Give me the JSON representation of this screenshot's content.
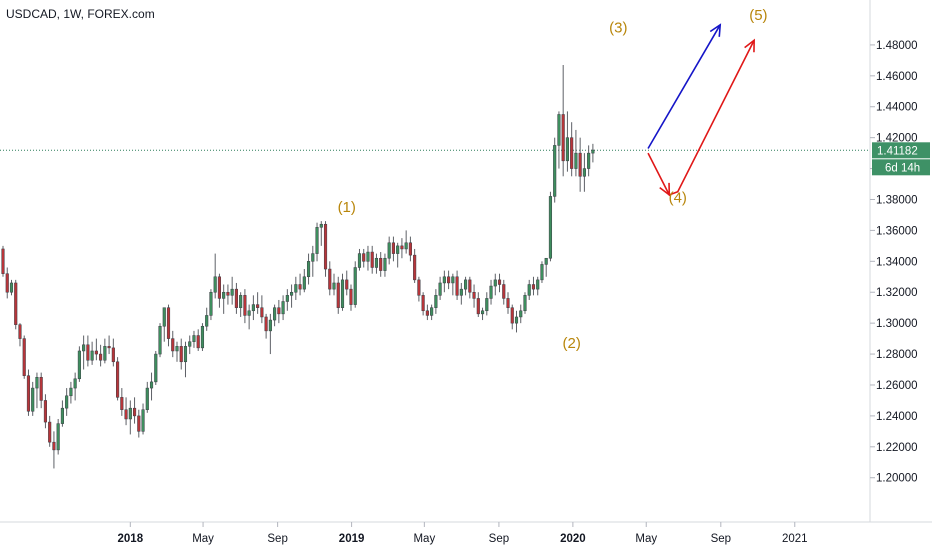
{
  "header": {
    "title": "USDCAD, 1W, FOREX.com"
  },
  "colors": {
    "up": "#3e8e5e",
    "down": "#b8353a",
    "wave_label": "#b8860b",
    "blue_arrow": "#1515c8",
    "red_arrow": "#e01818",
    "price_line": "#2e7d5b",
    "axis_text": "#131722",
    "price_tag_bg": "#3e9166"
  },
  "price_tag": {
    "price": "1.41182",
    "countdown": "6d 14h"
  },
  "wave_labels": [
    {
      "text": "(1)",
      "date": "2018-12-24",
      "price": 1.372
    },
    {
      "text": "(2)",
      "date": "2019-12-30",
      "price": 1.284
    },
    {
      "text": "(3)",
      "date": "2020-03-16",
      "price": 1.488
    },
    {
      "text": "(4)",
      "date": "2020-06-22",
      "price": 1.378
    },
    {
      "text": "(5)",
      "date": "2020-11-02",
      "price": 1.496
    }
  ],
  "arrows": [
    {
      "name": "blue-projection-arrow",
      "color_key": "blue_arrow",
      "points": [
        [
          "2020-05-04",
          1.413
        ],
        [
          "2020-08-31",
          1.493
        ]
      ]
    },
    {
      "name": "red-projection-arrow",
      "color_key": "red_arrow",
      "points": [
        [
          "2020-05-04",
          1.41
        ],
        [
          "2020-06-08",
          1.383
        ],
        [
          "2020-06-22",
          1.385
        ],
        [
          "2020-10-26",
          1.483
        ]
      ]
    }
  ],
  "chart_data": {
    "type": "candlestick",
    "title": "USDCAD, 1W, FOREX.com",
    "x_axis": {
      "ticks": [
        {
          "label": "2018",
          "date": "2018-01-01",
          "bold": true
        },
        {
          "label": "May",
          "date": "2018-05-01",
          "bold": false
        },
        {
          "label": "Sep",
          "date": "2018-09-01",
          "bold": false
        },
        {
          "label": "2019",
          "date": "2019-01-01",
          "bold": true
        },
        {
          "label": "May",
          "date": "2019-05-01",
          "bold": false
        },
        {
          "label": "Sep",
          "date": "2019-09-01",
          "bold": false
        },
        {
          "label": "2020",
          "date": "2020-01-01",
          "bold": true
        },
        {
          "label": "May",
          "date": "2020-05-01",
          "bold": false
        },
        {
          "label": "Sep",
          "date": "2020-09-01",
          "bold": false
        },
        {
          "label": "2021",
          "date": "2021-01-01",
          "bold": false
        }
      ]
    },
    "y_axis": {
      "side": "right",
      "range": [
        1.183,
        1.5
      ],
      "ticks": [
        "1.20000",
        "1.22000",
        "1.24000",
        "1.26000",
        "1.28000",
        "1.30000",
        "1.32000",
        "1.34000",
        "1.36000",
        "1.38000",
        "1.40000",
        "1.42000",
        "1.44000",
        "1.46000",
        "1.48000"
      ]
    },
    "current_price": 1.41182,
    "start_date": "2017-06-05",
    "candles": [
      [
        1.348,
        1.35,
        1.33,
        1.332
      ],
      [
        1.332,
        1.336,
        1.316,
        1.32
      ],
      [
        1.32,
        1.328,
        1.318,
        1.326
      ],
      [
        1.326,
        1.328,
        1.296,
        1.299
      ],
      [
        1.299,
        1.3,
        1.285,
        1.29
      ],
      [
        1.29,
        1.292,
        1.264,
        1.266
      ],
      [
        1.266,
        1.27,
        1.24,
        1.243
      ],
      [
        1.243,
        1.262,
        1.24,
        1.258
      ],
      [
        1.258,
        1.268,
        1.245,
        1.265
      ],
      [
        1.265,
        1.268,
        1.245,
        1.25
      ],
      [
        1.25,
        1.254,
        1.232,
        1.236
      ],
      [
        1.236,
        1.24,
        1.22,
        1.223
      ],
      [
        1.223,
        1.23,
        1.206,
        1.218
      ],
      [
        1.218,
        1.238,
        1.215,
        1.235
      ],
      [
        1.235,
        1.25,
        1.233,
        1.245
      ],
      [
        1.245,
        1.258,
        1.24,
        1.253
      ],
      [
        1.253,
        1.262,
        1.248,
        1.258
      ],
      [
        1.258,
        1.268,
        1.25,
        1.264
      ],
      [
        1.264,
        1.285,
        1.262,
        1.282
      ],
      [
        1.282,
        1.292,
        1.27,
        1.286
      ],
      [
        1.286,
        1.292,
        1.272,
        1.276
      ],
      [
        1.276,
        1.288,
        1.273,
        1.282
      ],
      [
        1.282,
        1.29,
        1.276,
        1.28
      ],
      [
        1.28,
        1.286,
        1.272,
        1.276
      ],
      [
        1.276,
        1.29,
        1.274,
        1.285
      ],
      [
        1.285,
        1.292,
        1.28,
        1.284
      ],
      [
        1.284,
        1.29,
        1.272,
        1.275
      ],
      [
        1.275,
        1.278,
        1.25,
        1.252
      ],
      [
        1.252,
        1.258,
        1.24,
        1.244
      ],
      [
        1.244,
        1.252,
        1.234,
        1.238
      ],
      [
        1.238,
        1.25,
        1.228,
        1.245
      ],
      [
        1.245,
        1.252,
        1.235,
        1.24
      ],
      [
        1.24,
        1.244,
        1.226,
        1.23
      ],
      [
        1.23,
        1.248,
        1.228,
        1.244
      ],
      [
        1.244,
        1.262,
        1.242,
        1.258
      ],
      [
        1.258,
        1.268,
        1.25,
        1.262
      ],
      [
        1.262,
        1.282,
        1.26,
        1.28
      ],
      [
        1.28,
        1.3,
        1.278,
        1.298
      ],
      [
        1.298,
        1.31,
        1.288,
        1.31
      ],
      [
        1.31,
        1.312,
        1.285,
        1.29
      ],
      [
        1.29,
        1.295,
        1.278,
        1.282
      ],
      [
        1.282,
        1.288,
        1.275,
        1.285
      ],
      [
        1.285,
        1.29,
        1.27,
        1.275
      ],
      [
        1.275,
        1.288,
        1.265,
        1.285
      ],
      [
        1.285,
        1.292,
        1.28,
        1.288
      ],
      [
        1.288,
        1.295,
        1.284,
        1.292
      ],
      [
        1.292,
        1.296,
        1.282,
        1.284
      ],
      [
        1.284,
        1.3,
        1.282,
        1.298
      ],
      [
        1.298,
        1.31,
        1.295,
        1.305
      ],
      [
        1.305,
        1.322,
        1.302,
        1.32
      ],
      [
        1.32,
        1.345,
        1.316,
        1.33
      ],
      [
        1.33,
        1.332,
        1.31,
        1.316
      ],
      [
        1.316,
        1.325,
        1.306,
        1.32
      ],
      [
        1.32,
        1.325,
        1.312,
        1.318
      ],
      [
        1.318,
        1.33,
        1.312,
        1.322
      ],
      [
        1.322,
        1.326,
        1.306,
        1.31
      ],
      [
        1.31,
        1.32,
        1.304,
        1.318
      ],
      [
        1.318,
        1.322,
        1.3,
        1.305
      ],
      [
        1.305,
        1.312,
        1.296,
        1.308
      ],
      [
        1.308,
        1.318,
        1.302,
        1.312
      ],
      [
        1.312,
        1.32,
        1.306,
        1.31
      ],
      [
        1.31,
        1.318,
        1.3,
        1.304
      ],
      [
        1.304,
        1.306,
        1.29,
        1.295
      ],
      [
        1.295,
        1.306,
        1.28,
        1.302
      ],
      [
        1.302,
        1.312,
        1.298,
        1.31
      ],
      [
        1.31,
        1.315,
        1.3,
        1.306
      ],
      [
        1.306,
        1.318,
        1.302,
        1.314
      ],
      [
        1.314,
        1.322,
        1.308,
        1.318
      ],
      [
        1.318,
        1.325,
        1.31,
        1.32
      ],
      [
        1.32,
        1.33,
        1.315,
        1.325
      ],
      [
        1.325,
        1.332,
        1.318,
        1.322
      ],
      [
        1.322,
        1.335,
        1.32,
        1.33
      ],
      [
        1.33,
        1.345,
        1.325,
        1.34
      ],
      [
        1.34,
        1.35,
        1.33,
        1.345
      ],
      [
        1.345,
        1.365,
        1.34,
        1.362
      ],
      [
        1.362,
        1.366,
        1.35,
        1.364
      ],
      [
        1.364,
        1.366,
        1.33,
        1.335
      ],
      [
        1.335,
        1.34,
        1.318,
        1.322
      ],
      [
        1.322,
        1.332,
        1.318,
        1.326
      ],
      [
        1.326,
        1.33,
        1.306,
        1.31
      ],
      [
        1.31,
        1.332,
        1.308,
        1.328
      ],
      [
        1.328,
        1.334,
        1.318,
        1.322
      ],
      [
        1.322,
        1.325,
        1.308,
        1.312
      ],
      [
        1.312,
        1.34,
        1.31,
        1.336
      ],
      [
        1.336,
        1.348,
        1.334,
        1.345
      ],
      [
        1.345,
        1.348,
        1.336,
        1.34
      ],
      [
        1.34,
        1.35,
        1.334,
        1.346
      ],
      [
        1.346,
        1.35,
        1.332,
        1.336
      ],
      [
        1.336,
        1.345,
        1.332,
        1.342
      ],
      [
        1.342,
        1.346,
        1.33,
        1.334
      ],
      [
        1.334,
        1.345,
        1.33,
        1.342
      ],
      [
        1.342,
        1.356,
        1.338,
        1.352
      ],
      [
        1.352,
        1.356,
        1.34,
        1.345
      ],
      [
        1.345,
        1.352,
        1.336,
        1.35
      ],
      [
        1.35,
        1.355,
        1.342,
        1.348
      ],
      [
        1.348,
        1.36,
        1.345,
        1.352
      ],
      [
        1.352,
        1.356,
        1.34,
        1.344
      ],
      [
        1.344,
        1.348,
        1.326,
        1.328
      ],
      [
        1.328,
        1.33,
        1.314,
        1.318
      ],
      [
        1.318,
        1.32,
        1.305,
        1.308
      ],
      [
        1.308,
        1.312,
        1.302,
        1.305
      ],
      [
        1.305,
        1.312,
        1.302,
        1.31
      ],
      [
        1.31,
        1.322,
        1.306,
        1.318
      ],
      [
        1.318,
        1.33,
        1.315,
        1.326
      ],
      [
        1.326,
        1.334,
        1.32,
        1.33
      ],
      [
        1.33,
        1.334,
        1.322,
        1.326
      ],
      [
        1.326,
        1.332,
        1.318,
        1.33
      ],
      [
        1.33,
        1.334,
        1.315,
        1.318
      ],
      [
        1.318,
        1.326,
        1.312,
        1.322
      ],
      [
        1.322,
        1.33,
        1.318,
        1.328
      ],
      [
        1.328,
        1.33,
        1.316,
        1.32
      ],
      [
        1.32,
        1.325,
        1.31,
        1.316
      ],
      [
        1.316,
        1.32,
        1.304,
        1.306
      ],
      [
        1.306,
        1.31,
        1.302,
        1.308
      ],
      [
        1.308,
        1.32,
        1.305,
        1.316
      ],
      [
        1.316,
        1.328,
        1.312,
        1.324
      ],
      [
        1.324,
        1.332,
        1.318,
        1.328
      ],
      [
        1.328,
        1.332,
        1.32,
        1.325
      ],
      [
        1.325,
        1.328,
        1.312,
        1.316
      ],
      [
        1.316,
        1.32,
        1.306,
        1.31
      ],
      [
        1.31,
        1.312,
        1.296,
        1.3
      ],
      [
        1.3,
        1.308,
        1.294,
        1.304
      ],
      [
        1.304,
        1.312,
        1.3,
        1.308
      ],
      [
        1.308,
        1.32,
        1.306,
        1.318
      ],
      [
        1.318,
        1.328,
        1.315,
        1.325
      ],
      [
        1.325,
        1.33,
        1.318,
        1.322
      ],
      [
        1.322,
        1.33,
        1.318,
        1.328
      ],
      [
        1.328,
        1.34,
        1.326,
        1.338
      ],
      [
        1.338,
        1.342,
        1.33,
        1.342
      ],
      [
        1.342,
        1.385,
        1.34,
        1.382
      ],
      [
        1.382,
        1.42,
        1.378,
        1.415
      ],
      [
        1.415,
        1.437,
        1.4,
        1.435
      ],
      [
        1.435,
        1.467,
        1.395,
        1.405
      ],
      [
        1.405,
        1.437,
        1.398,
        1.42
      ],
      [
        1.42,
        1.43,
        1.395,
        1.4
      ],
      [
        1.4,
        1.425,
        1.395,
        1.41
      ],
      [
        1.41,
        1.42,
        1.385,
        1.395
      ],
      [
        1.395,
        1.41,
        1.385,
        1.4
      ],
      [
        1.4,
        1.415,
        1.395,
        1.41
      ],
      [
        1.41,
        1.416,
        1.404,
        1.412
      ]
    ]
  }
}
